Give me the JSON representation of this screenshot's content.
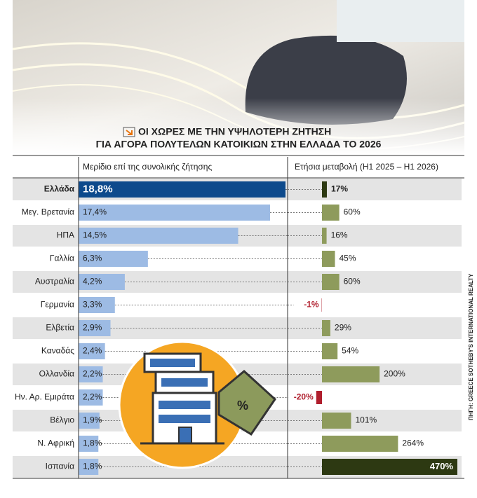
{
  "chart_data": {
    "type": "bar",
    "title": [
      "ΟΙ ΧΩΡΕΣ ΜΕ ΤΗΝ ΥΨΗΛΟΤΕΡΗ ΖΗΤΗΣΗ",
      "ΓΙΑ ΑΓΟΡΑ ΠΟΛΥΤΕΛΩΝ ΚΑΤΟΙΚΙΩΝ ΣΤΗΝ ΕΛΛΑΔΑ ΤΟ 2026"
    ],
    "categories": [
      "Ελλάδα",
      "Μεγ. Βρετανία",
      "ΗΠΑ",
      "Γαλλία",
      "Αυστραλία",
      "Γερμανία",
      "Ελβετία",
      "Καναδάς",
      "Ολλανδία",
      "Ην. Αρ. Εμιράτα",
      "Βέλγιο",
      "Ν. Αφρική",
      "Ισπανία"
    ],
    "series": [
      {
        "name": "Μερίδιο επί της συνολικής ζήτησης",
        "values": [
          18.8,
          17.4,
          14.5,
          6.3,
          4.2,
          3.3,
          2.9,
          2.4,
          2.2,
          2.2,
          1.9,
          1.8,
          1.8
        ],
        "value_labels": [
          "18,8%",
          "17,4%",
          "14,5%",
          "6,3%",
          "4,2%",
          "3,3%",
          "2,9%",
          "2,4%",
          "2,2%",
          "2,2%",
          "1,9%",
          "1,8%",
          "1,8%"
        ],
        "colors": [
          "#0d4a8c",
          "#9dbbe4",
          "#9dbbe4",
          "#9dbbe4",
          "#9dbbe4",
          "#9dbbe4",
          "#9dbbe4",
          "#9dbbe4",
          "#9dbbe4",
          "#9dbbe4",
          "#9dbbe4",
          "#9dbbe4",
          "#9dbbe4"
        ]
      },
      {
        "name": "Ετήσια μεταβολή (H1 2025 – H1 2026)",
        "values": [
          17,
          60,
          16,
          45,
          60,
          -1,
          29,
          54,
          200,
          -20,
          101,
          264,
          470
        ],
        "value_labels": [
          "17%",
          "60%",
          "16%",
          "45%",
          "60%",
          "-1%",
          "29%",
          "54%",
          "200%",
          "-20%",
          "101%",
          "264%",
          "470%"
        ],
        "colors": [
          "#2d3912",
          "#8e9b5c",
          "#8e9b5c",
          "#8e9b5c",
          "#8e9b5c",
          "#b01e2d",
          "#8e9b5c",
          "#8e9b5c",
          "#8e9b5c",
          "#b01e2d",
          "#8e9b5c",
          "#8e9b5c",
          "#2d3912"
        ]
      }
    ],
    "annotations": [
      "%"
    ],
    "source": "ΠΗΓΗ: GREECE SOTHEBY'S INTERNATIONAL REALTY"
  }
}
